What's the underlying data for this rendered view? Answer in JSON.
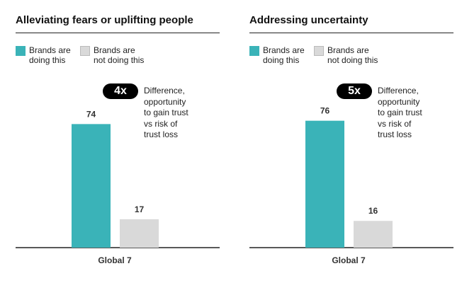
{
  "chart_data": [
    {
      "type": "bar",
      "title": "Alleviating fears or uplifting people",
      "categories": [
        "Global 7"
      ],
      "series": [
        {
          "name": "Brands are doing this",
          "color": "#3ab3b8",
          "values": [
            74
          ]
        },
        {
          "name": "Brands are not doing this",
          "color": "#d9d9d9",
          "values": [
            17
          ]
        }
      ],
      "annotation": {
        "badge": "4x",
        "text": "Difference, opportunity to gain trust vs risk of trust loss"
      }
    },
    {
      "type": "bar",
      "title": "Addressing uncertainty",
      "categories": [
        "Global 7"
      ],
      "series": [
        {
          "name": "Brands are doing this",
          "color": "#3ab3b8",
          "values": [
            76
          ]
        },
        {
          "name": "Brands are not doing this",
          "color": "#d9d9d9",
          "values": [
            16
          ]
        }
      ],
      "annotation": {
        "badge": "5x",
        "text": "Difference, opportunity to gain trust vs risk of trust loss"
      }
    }
  ]
}
